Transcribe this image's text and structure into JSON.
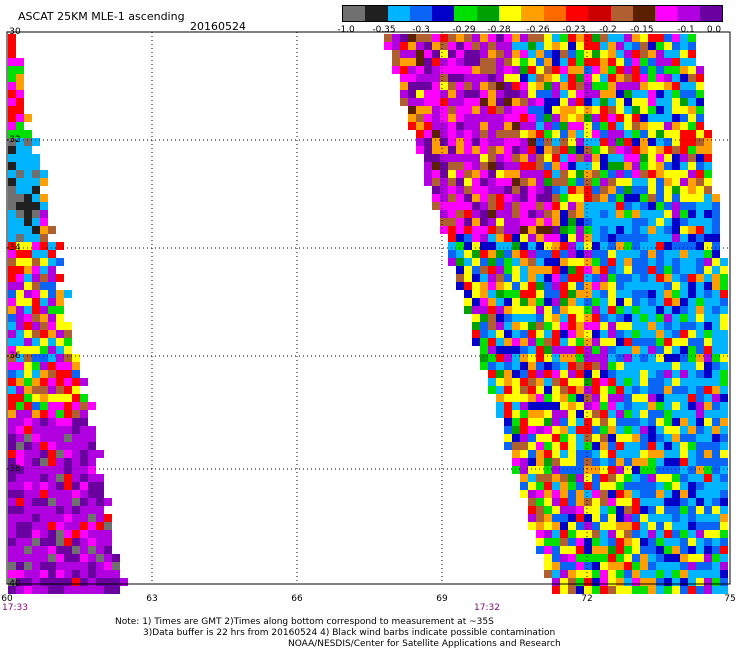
{
  "header": {
    "title": "ASCAT 25KM MLE-1 ascending",
    "date": "20160524"
  },
  "colorbar": {
    "colors": [
      "#707070",
      "#202020",
      "#00b4ff",
      "#0a64f5",
      "#0000c8",
      "#00e000",
      "#00a000",
      "#ffff00",
      "#ffa000",
      "#ff6a00",
      "#ff0000",
      "#cc0000",
      "#b06030",
      "#5a2000",
      "#ff00ff",
      "#b000e0",
      "#6a00a0"
    ],
    "labels": [
      "-1.0",
      "-0.35",
      "-0.3",
      "-0.29",
      "-0.28",
      "-0.26",
      "-0.23",
      "-0.2",
      "-0.15",
      "-0.1",
      "0.0"
    ]
  },
  "axes": {
    "x_ticks": [
      "60",
      "63",
      "66",
      "69",
      "72",
      "75"
    ],
    "y_ticks": [
      "-30",
      "-32",
      "-34",
      "-36",
      "-38",
      "-40"
    ],
    "time_labels": [
      "17:33",
      "17:32"
    ],
    "grid": "dotted"
  },
  "notes": {
    "line1": "Note: 1) Times are GMT 2)Times along bottom correspond to measurement at ~35S",
    "line2": "3)Data buffer is 22 hrs from 20160524 4) Black wind barbs indicate possible contamination",
    "line3": "NOAA/NESDIS/Center for Satellite Applications and Research"
  }
}
